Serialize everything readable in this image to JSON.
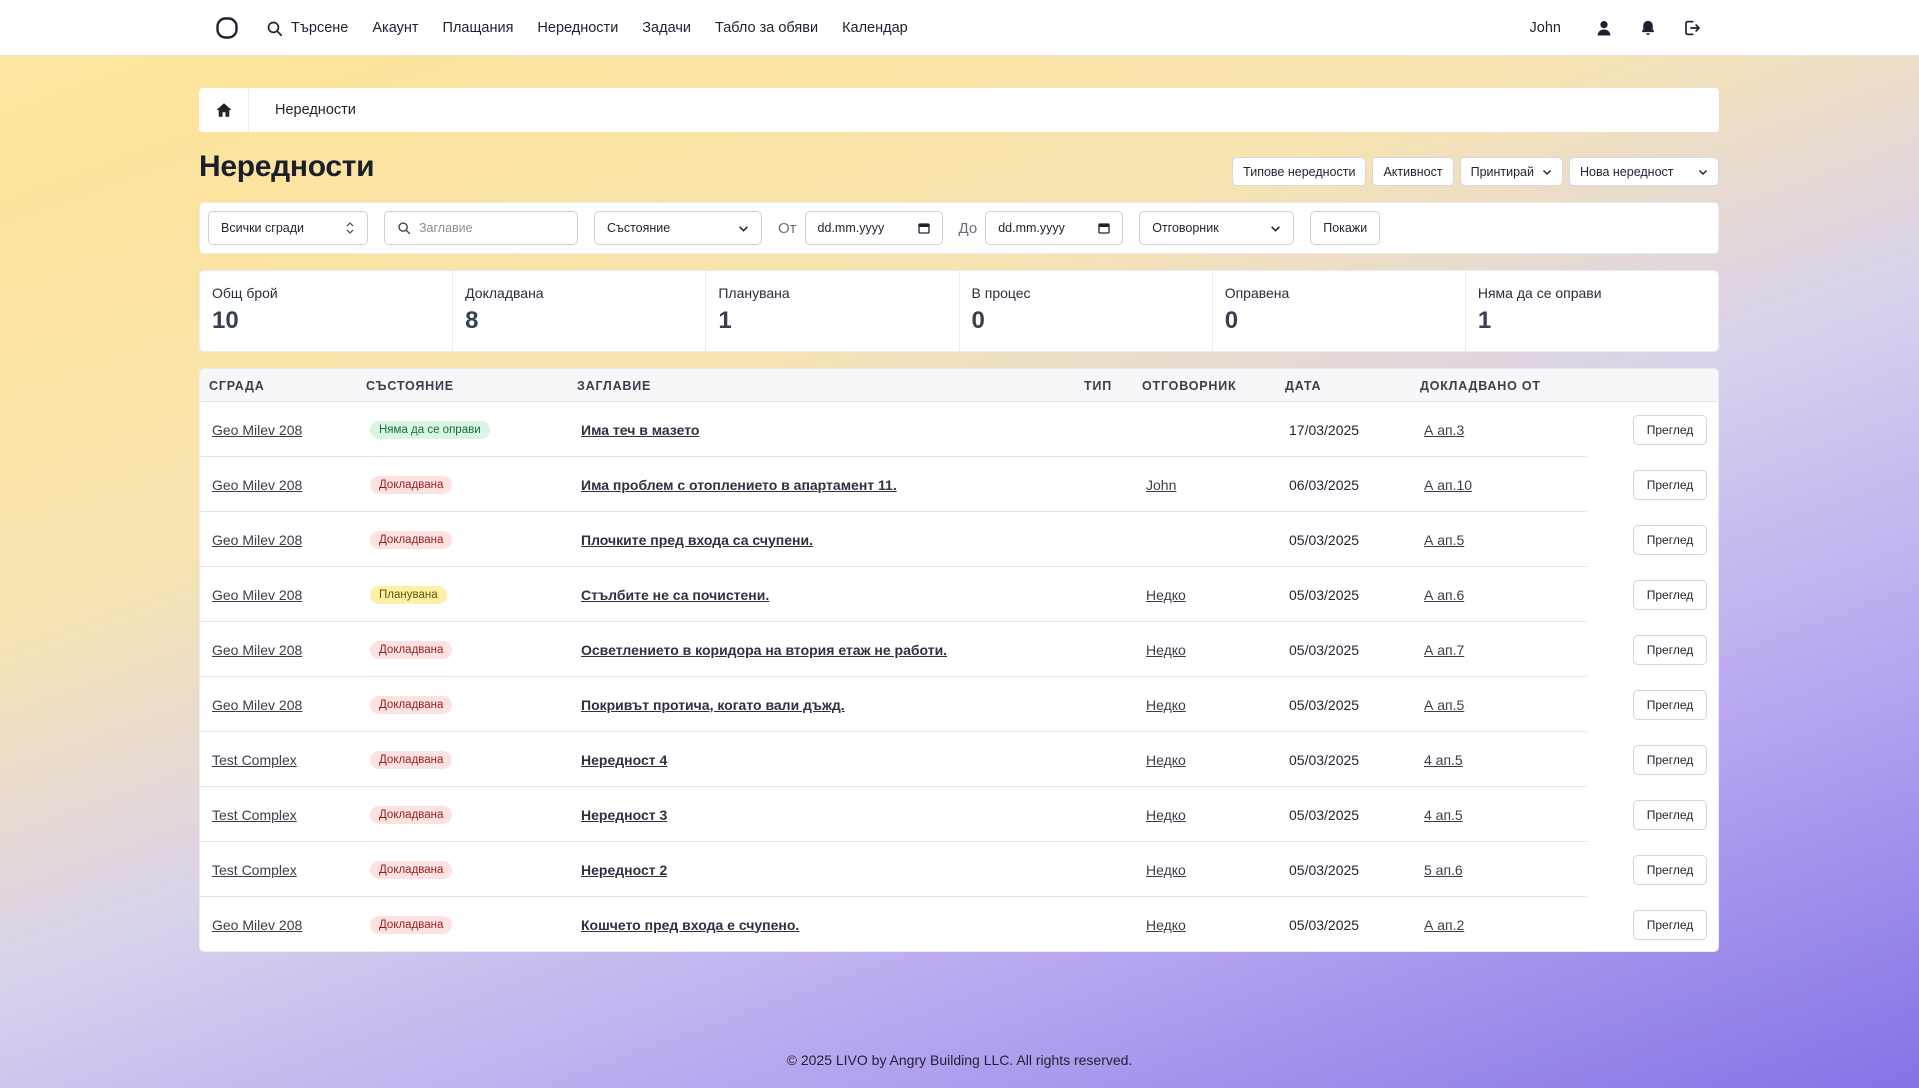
{
  "nav": {
    "search_label": "Търсене",
    "items": [
      "Акаунт",
      "Плащания",
      "Нередности",
      "Задачи",
      "Табло за обяви",
      "Календар"
    ]
  },
  "user": {
    "name": "John"
  },
  "breadcrumb": {
    "current": "Нередности"
  },
  "page": {
    "title": "Нередности"
  },
  "actions": {
    "types": "Типове нередности",
    "activity": "Активност",
    "print": "Принтирай",
    "new": "Нова нередност"
  },
  "filters": {
    "building": "Всички сгради",
    "title_placeholder": "Заглавие",
    "status": "Състояние",
    "from_label": "От",
    "from_value": "dd.mm.yyyy",
    "to_label": "До",
    "to_value": "dd.mm.yyyy",
    "responsible": "Отговорник",
    "show": "Покажи"
  },
  "stats": [
    {
      "label": "Общ брой",
      "value": "10"
    },
    {
      "label": "Докладвана",
      "value": "8"
    },
    {
      "label": "Планувана",
      "value": "1"
    },
    {
      "label": "В процес",
      "value": "0"
    },
    {
      "label": "Оправена",
      "value": "0"
    },
    {
      "label": "Няма да се оправи",
      "value": "1"
    }
  ],
  "table": {
    "headers": {
      "building": "СГРАДА",
      "status": "СЪСТОЯНИЕ",
      "title": "ЗАГЛАВИЕ",
      "type": "ТИП",
      "responsible": "ОТГОВОРНИК",
      "date": "ДАТА",
      "reported_by": "ДОКЛАДВАНО ОТ"
    },
    "view_label": "Преглед",
    "rows": [
      {
        "building": "Geo Milev 208",
        "status": "Няма да се оправи",
        "status_color": "green",
        "title": "Има теч в мазето",
        "responsible": "",
        "date": "17/03/2025",
        "reported_by": "А ап.3"
      },
      {
        "building": "Geo Milev 208",
        "status": "Докладвана",
        "status_color": "red",
        "title": "Има проблем с отоплението в апартамент 11.",
        "responsible": "John",
        "date": "06/03/2025",
        "reported_by": "А ап.10"
      },
      {
        "building": "Geo Milev 208",
        "status": "Докладвана",
        "status_color": "red",
        "title": "Плочките пред входа са счупени.",
        "responsible": "",
        "date": "05/03/2025",
        "reported_by": "А ап.5"
      },
      {
        "building": "Geo Milev 208",
        "status": "Планувана",
        "status_color": "yellow",
        "title": "Стълбите не са почистени.",
        "responsible": "Недко",
        "date": "05/03/2025",
        "reported_by": "А ап.6"
      },
      {
        "building": "Geo Milev 208",
        "status": "Докладвана",
        "status_color": "red",
        "title": "Осветлението в коридора на втория етаж не работи.",
        "responsible": "Недко",
        "date": "05/03/2025",
        "reported_by": "А ап.7"
      },
      {
        "building": "Geo Milev 208",
        "status": "Докладвана",
        "status_color": "red",
        "title": "Покривът протича, когато вали дъжд.",
        "responsible": "Недко",
        "date": "05/03/2025",
        "reported_by": "А ап.5"
      },
      {
        "building": "Test Complex",
        "status": "Докладвана",
        "status_color": "red",
        "title": "Нередност 4",
        "responsible": "Недко",
        "date": "05/03/2025",
        "reported_by": "4 ап.5"
      },
      {
        "building": "Test Complex",
        "status": "Докладвана",
        "status_color": "red",
        "title": "Нередност 3",
        "responsible": "Недко",
        "date": "05/03/2025",
        "reported_by": "4 ап.5"
      },
      {
        "building": "Test Complex",
        "status": "Докладвана",
        "status_color": "red",
        "title": "Нередност 2",
        "responsible": "Недко",
        "date": "05/03/2025",
        "reported_by": "5 ап.6"
      },
      {
        "building": "Geo Milev 208",
        "status": "Докладвана",
        "status_color": "red",
        "title": "Кошчето пред входа е счупено.",
        "responsible": "Недко",
        "date": "05/03/2025",
        "reported_by": "А ап.2"
      }
    ]
  },
  "colors": {
    "badge_green_bg": "#d9f5e4",
    "badge_green_fg": "#1b6b3a",
    "badge_red_bg": "#fde2e2",
    "badge_red_fg": "#9b1c1c",
    "badge_yellow_bg": "#fdf1a8",
    "badge_yellow_fg": "#6b5300"
  },
  "footer": {
    "text": "© 2025 LIVO by Angry Building LLC. All rights reserved."
  }
}
